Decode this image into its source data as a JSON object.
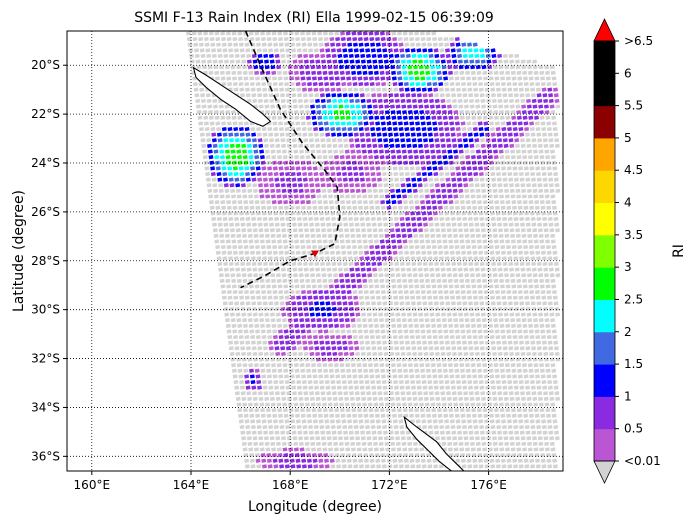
{
  "figure": {
    "background": "#ffffff"
  },
  "chart_data": {
    "type": "heatmap",
    "title": "SSMI F-13 Rain Index (RI) Ella 1999-02-15 06:39:09",
    "xlabel": "Longitude (degree)",
    "ylabel": "Latitude (degree)",
    "xlim": [
      159,
      179
    ],
    "ylim": [
      -36.6,
      -18.6
    ],
    "x_ticks": [
      {
        "value": 160,
        "label": "160°E"
      },
      {
        "value": 164,
        "label": "164°E"
      },
      {
        "value": 168,
        "label": "168°E"
      },
      {
        "value": 172,
        "label": "172°E"
      },
      {
        "value": 176,
        "label": "176°E"
      }
    ],
    "y_ticks": [
      {
        "value": -20,
        "label": "20°S"
      },
      {
        "value": -22,
        "label": "22°S"
      },
      {
        "value": -24,
        "label": "24°S"
      },
      {
        "value": -26,
        "label": "26°S"
      },
      {
        "value": -28,
        "label": "28°S"
      },
      {
        "value": -30,
        "label": "30°S"
      },
      {
        "value": -32,
        "label": "32°S"
      },
      {
        "value": -34,
        "label": "34°S"
      },
      {
        "value": -36,
        "label": "36°S"
      }
    ],
    "grid": true,
    "grid_style": "dotted",
    "colorbar": {
      "label": "RI",
      "levels": [
        0.01,
        0.5,
        1,
        1.5,
        2,
        2.5,
        3,
        3.5,
        4,
        4.5,
        5,
        5.5,
        6,
        6.5
      ],
      "tick_labels": [
        "<0.01",
        "0.5",
        "1",
        "1.5",
        "2",
        "2.5",
        "3",
        "3.5",
        "4",
        "4.5",
        "5",
        "5.5",
        "6",
        ">6.5"
      ],
      "under_color": "#d3d3d3",
      "over_color": "#ff0000",
      "colors": [
        "#ba55d3",
        "#8a2be2",
        "#0000ff",
        "#4169e1",
        "#00ffff",
        "#00ff00",
        "#7fff00",
        "#ffff00",
        "#ffd700",
        "#ffa500",
        "#8b0000",
        "#000000",
        "#000000"
      ]
    },
    "swath": {
      "west_edge": [
        [
          163.9,
          -18.7
        ],
        [
          166.3,
          -36.6
        ]
      ],
      "east_edge": [
        [
          178.8,
          -18.7
        ],
        [
          178.8,
          -36.6
        ]
      ],
      "top_edge": [
        [
          163.9,
          -18.7
        ],
        [
          174.0,
          -18.7
        ],
        [
          178.8,
          -20.1
        ]
      ],
      "cell_step_deg": 0.23,
      "background_value": "<0.01"
    },
    "rain_regions": [
      {
        "type": "blob",
        "center": [
          167.0,
          -19.9
        ],
        "radius": [
          0.7,
          0.5
        ],
        "peak": 1.5
      },
      {
        "type": "blob",
        "center": [
          169.3,
          -20.3
        ],
        "radius": [
          1.4,
          0.9
        ],
        "peak": 0.8
      },
      {
        "type": "blob",
        "center": [
          171.0,
          -19.7
        ],
        "radius": [
          1.8,
          1.2
        ],
        "peak": 1.4
      },
      {
        "type": "blob",
        "center": [
          173.2,
          -20.2
        ],
        "radius": [
          1.3,
          1.0
        ],
        "peak": 2.8
      },
      {
        "type": "blob",
        "center": [
          175.4,
          -19.5
        ],
        "radius": [
          1.1,
          0.8
        ],
        "peak": 2.3
      },
      {
        "type": "blob",
        "center": [
          170.1,
          -22.0
        ],
        "radius": [
          1.4,
          1.0
        ],
        "peak": 2.7
      },
      {
        "type": "blob",
        "center": [
          172.6,
          -22.6
        ],
        "radius": [
          2.4,
          1.6
        ],
        "peak": 1.3
      },
      {
        "type": "blob",
        "center": [
          165.8,
          -23.7
        ],
        "radius": [
          1.2,
          1.3
        ],
        "peak": 2.9
      },
      {
        "type": "blob",
        "center": [
          168.0,
          -24.8
        ],
        "radius": [
          1.4,
          1.0
        ],
        "peak": 0.6
      },
      {
        "type": "blob",
        "center": [
          170.5,
          -24.4
        ],
        "radius": [
          1.2,
          0.9
        ],
        "peak": 0.6
      },
      {
        "type": "blob",
        "center": [
          169.3,
          -30.0
        ],
        "radius": [
          1.6,
          0.9
        ],
        "peak": 1.1
      },
      {
        "type": "blob",
        "center": [
          169.6,
          -31.5
        ],
        "radius": [
          1.1,
          0.6
        ],
        "peak": 0.7
      },
      {
        "type": "blob",
        "center": [
          166.5,
          -32.9
        ],
        "radius": [
          0.4,
          0.5
        ],
        "peak": 1.2
      },
      {
        "type": "blob",
        "center": [
          168.2,
          -36.2
        ],
        "radius": [
          1.5,
          0.5
        ],
        "peak": 0.7
      },
      {
        "type": "band",
        "from": [
          178.4,
          -21.3
        ],
        "to": [
          167.6,
          -31.5
        ],
        "width": 0.45,
        "peak": 0.7
      },
      {
        "type": "band",
        "from": [
          175.8,
          -22.6
        ],
        "to": [
          172.0,
          -25.6
        ],
        "width": 0.3,
        "peak": 1.2
      }
    ],
    "land": [
      {
        "name": "New Caledonia",
        "outline": [
          [
            164.1,
            -20.1
          ],
          [
            164.6,
            -20.4
          ],
          [
            165.2,
            -20.8
          ],
          [
            165.8,
            -21.2
          ],
          [
            166.4,
            -21.6
          ],
          [
            166.9,
            -22.0
          ],
          [
            167.2,
            -22.3
          ],
          [
            166.9,
            -22.5
          ],
          [
            166.4,
            -22.3
          ],
          [
            165.8,
            -21.8
          ],
          [
            165.2,
            -21.4
          ],
          [
            164.6,
            -20.9
          ],
          [
            164.2,
            -20.5
          ],
          [
            164.1,
            -20.1
          ]
        ]
      },
      {
        "name": "New Zealand (North Island tip)",
        "outline": [
          [
            172.6,
            -34.4
          ],
          [
            173.1,
            -34.8
          ],
          [
            173.5,
            -35.1
          ],
          [
            173.9,
            -35.4
          ],
          [
            174.3,
            -35.9
          ],
          [
            174.7,
            -36.3
          ],
          [
            175.0,
            -36.6
          ],
          [
            174.5,
            -36.6
          ],
          [
            174.0,
            -36.2
          ],
          [
            173.6,
            -35.8
          ],
          [
            173.1,
            -35.3
          ],
          [
            172.7,
            -34.8
          ],
          [
            172.6,
            -34.4
          ]
        ]
      }
    ],
    "track": [
      [
        166.2,
        -18.6
      ],
      [
        166.8,
        -20.0
      ],
      [
        167.6,
        -21.8
      ],
      [
        168.5,
        -23.2
      ],
      [
        169.4,
        -24.3
      ],
      [
        169.9,
        -25.0
      ],
      [
        170.0,
        -26.2
      ],
      [
        169.8,
        -27.3
      ],
      [
        169.0,
        -27.7
      ],
      [
        168.0,
        -28.0
      ],
      [
        167.0,
        -28.6
      ],
      [
        166.0,
        -29.1
      ]
    ],
    "storm_center": {
      "lon": 169.0,
      "lat": -27.7,
      "marker_color": "#dd0000"
    }
  }
}
